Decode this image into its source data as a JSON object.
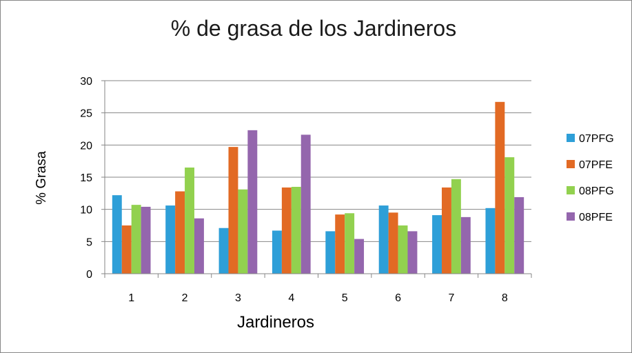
{
  "chart_data": {
    "type": "bar",
    "title": "% de grasa de los Jardineros",
    "xlabel": "Jardineros",
    "ylabel": "% Grasa",
    "categories": [
      "1",
      "2",
      "3",
      "4",
      "5",
      "6",
      "7",
      "8"
    ],
    "ylim": [
      0,
      30
    ],
    "yticks": [
      "0",
      "5",
      "10",
      "15",
      "20",
      "25",
      "30"
    ],
    "grid": "horizontal",
    "legend_position": "right",
    "series": [
      {
        "name": "07PFG",
        "color": "#2e9fd8",
        "values": [
          12.2,
          10.6,
          7.1,
          6.7,
          6.6,
          10.6,
          9.1,
          10.2
        ]
      },
      {
        "name": "07PFE",
        "color": "#e26a24",
        "values": [
          7.5,
          12.8,
          19.7,
          13.4,
          9.2,
          9.5,
          13.4,
          26.7
        ]
      },
      {
        "name": "08PFG",
        "color": "#92d14f",
        "values": [
          10.7,
          16.5,
          13.1,
          13.5,
          9.4,
          7.5,
          14.7,
          18.1
        ]
      },
      {
        "name": "08PFE",
        "color": "#9466ad",
        "values": [
          10.4,
          8.6,
          22.3,
          21.6,
          5.4,
          6.6,
          8.8,
          11.9
        ]
      }
    ]
  }
}
